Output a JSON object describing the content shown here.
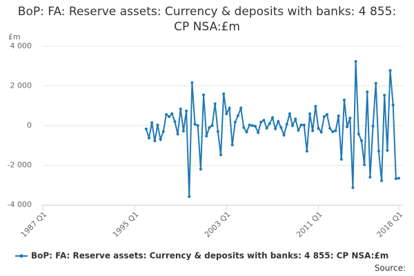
{
  "chart_data": {
    "type": "line",
    "title": "BoP: FA: Reserve assets: Currency & deposits with banks: 4 855: CP NSA:£m",
    "y_label": "£m",
    "source": "Source:",
    "x": [
      1996,
      1996.25,
      1996.5,
      1996.75,
      1997,
      1997.25,
      1997.5,
      1997.75,
      1998,
      1998.25,
      1998.5,
      1998.75,
      1999,
      1999.25,
      1999.5,
      1999.75,
      2000,
      2000.25,
      2000.5,
      2000.75,
      2001,
      2001.25,
      2001.5,
      2001.75,
      2002,
      2002.25,
      2002.5,
      2002.75,
      2003,
      2003.25,
      2003.5,
      2003.75,
      2004,
      2004.25,
      2004.5,
      2004.75,
      2005,
      2005.25,
      2005.5,
      2005.75,
      2006,
      2006.25,
      2006.5,
      2006.75,
      2007,
      2007.25,
      2007.5,
      2007.75,
      2008,
      2008.25,
      2008.5,
      2008.75,
      2009,
      2009.25,
      2009.5,
      2009.75,
      2010,
      2010.25,
      2010.5,
      2010.75,
      2011,
      2011.25,
      2011.5,
      2011.75,
      2012,
      2012.25,
      2012.5,
      2012.75,
      2013,
      2013.25,
      2013.5,
      2013.75,
      2014,
      2014.25,
      2014.5,
      2014.75,
      2015,
      2015.25,
      2015.5,
      2015.75,
      2016,
      2016.25,
      2016.5,
      2016.75,
      2017,
      2017.25,
      2017.5,
      2017.75,
      2018
    ],
    "series": [
      {
        "name": "BoP: FA: Reserve assets: Currency & deposits with banks: 4 855: CP NSA:£m",
        "color": "#1f78b4",
        "values": [
          -170,
          -630,
          150,
          -770,
          30,
          -700,
          -300,
          560,
          450,
          600,
          200,
          -430,
          840,
          -280,
          740,
          -3580,
          2160,
          70,
          0,
          -2200,
          1550,
          -530,
          -100,
          0,
          1100,
          -300,
          -1480,
          1600,
          600,
          880,
          -980,
          170,
          500,
          880,
          -100,
          -320,
          30,
          0,
          -30,
          -350,
          180,
          270,
          -130,
          100,
          400,
          -160,
          210,
          -100,
          -480,
          70,
          600,
          0,
          330,
          -240,
          30,
          30,
          -1290,
          600,
          -260,
          970,
          -140,
          -330,
          450,
          560,
          -140,
          -310,
          -260,
          490,
          -1700,
          1290,
          -60,
          380,
          -3130,
          3230,
          -420,
          -760,
          -1980,
          1700,
          -2600,
          -30,
          2130,
          -1290,
          -2780,
          1530,
          -1250,
          2780,
          1040,
          -2680,
          -2650
        ]
      }
    ],
    "xlim": [
      1987,
      2018
    ],
    "xticks": [
      {
        "value": 1987,
        "label": "1987 Q1"
      },
      {
        "value": 1995,
        "label": "1995 Q1"
      },
      {
        "value": 2003,
        "label": "2003 Q1"
      },
      {
        "value": 2011,
        "label": "2011 Q1"
      },
      {
        "value": 2018,
        "label": "2018 Q1"
      }
    ],
    "ylim": [
      -4000,
      4000
    ],
    "yticks": [
      {
        "value": -4000,
        "label": "-4 000"
      },
      {
        "value": -2000,
        "label": "-2 000"
      },
      0,
      {
        "value": 2000,
        "label": "2 000"
      },
      {
        "value": 4000,
        "label": "4 000"
      }
    ],
    "grid": true
  }
}
